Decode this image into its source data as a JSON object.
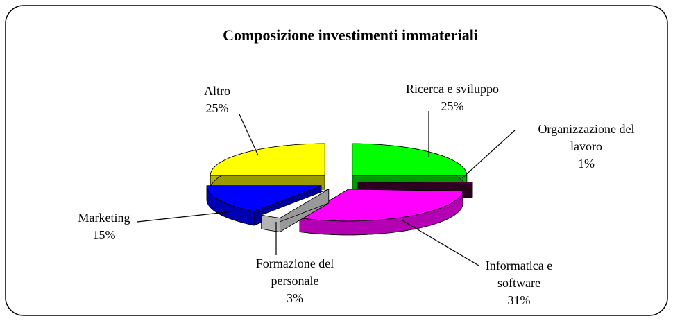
{
  "chart_data": {
    "type": "pie",
    "title": "Composizione investimenti immateriali",
    "categories": [
      "Ricerca e sviluppo",
      "Organizzazione del lavoro",
      "Informatica e software",
      "Formazione del personale",
      "Marketing",
      "Altro"
    ],
    "values": [
      25,
      1,
      31,
      3,
      15,
      25
    ],
    "value_labels": [
      "25%",
      "1%",
      "31%",
      "3%",
      "15%",
      "25%"
    ],
    "colors": [
      "#00ff00",
      "#4d0033",
      "#ff00ff",
      "#ffffff",
      "#0000ff",
      "#ffff00"
    ],
    "three_d": true,
    "exploded": true
  }
}
